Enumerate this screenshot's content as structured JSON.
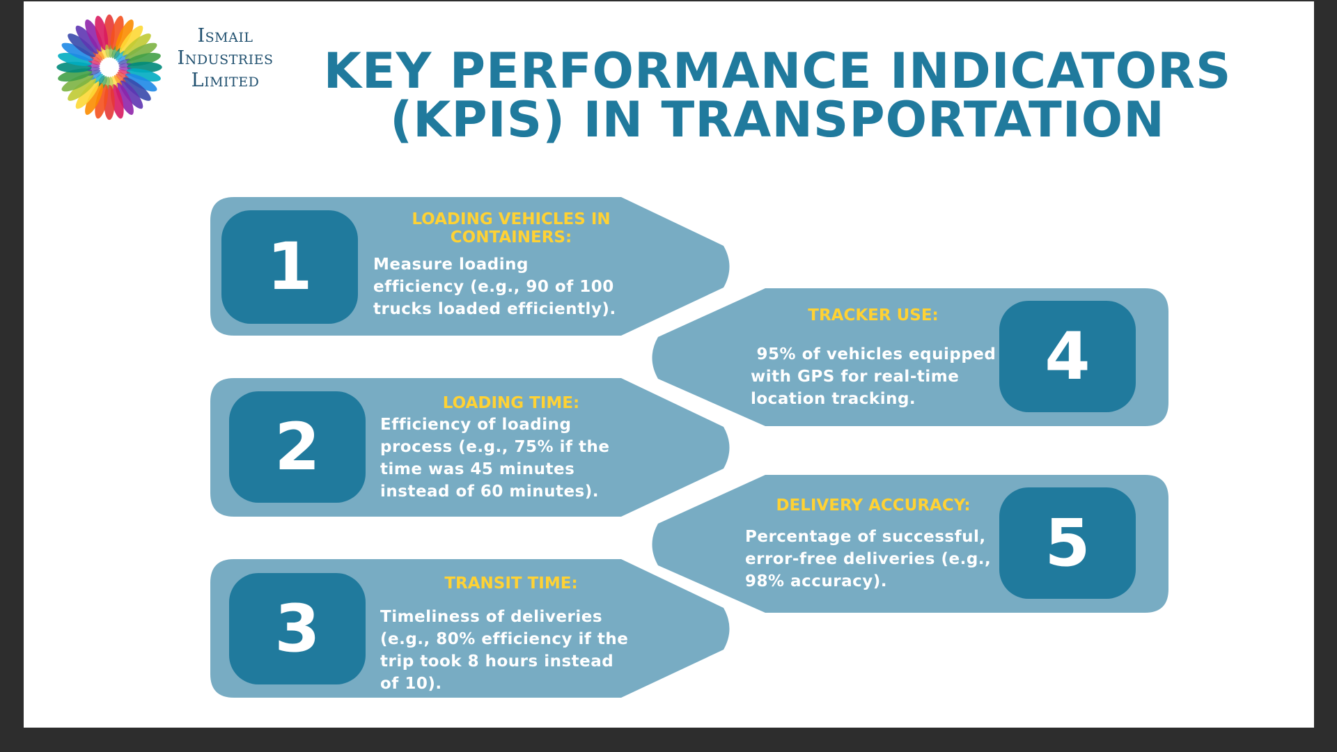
{
  "logo": {
    "icon": "sunburst-flower-logo",
    "lines": [
      "Ismail",
      "Industries",
      "Limited"
    ]
  },
  "title": {
    "line1": "KEY PERFORMANCE INDICATORS",
    "line2": "(KPIS) IN TRANSPORTATION"
  },
  "colors": {
    "card": "#78acc3",
    "badge": "#207a9d",
    "heading": "#ffd234",
    "title": "#207a9d"
  },
  "kpis": [
    {
      "number": "1",
      "heading_lines": [
        "LOADING VEHICLES IN",
        "CONTAINERS:"
      ],
      "body_lines": [
        "Measure loading",
        "efficiency (e.g., 90 of 100",
        "trucks loaded efficiently)."
      ]
    },
    {
      "number": "2",
      "heading_lines": [
        "LOADING TIME:"
      ],
      "body_lines": [
        "Efficiency of loading",
        "process (e.g., 75% if the",
        "time was 45 minutes",
        "instead of 60 minutes)."
      ]
    },
    {
      "number": "3",
      "heading_lines": [
        "TRANSIT TIME:"
      ],
      "body_lines": [
        "Timeliness of deliveries",
        "(e.g., 80% efficiency if the",
        "trip took 8 hours instead",
        "of 10)."
      ]
    },
    {
      "number": "4",
      "heading_lines": [
        "TRACKER USE:"
      ],
      "body_lines": [
        " 95% of vehicles equipped",
        "with GPS for real-time",
        "location tracking."
      ]
    },
    {
      "number": "5",
      "heading_lines": [
        "DELIVERY ACCURACY:"
      ],
      "body_lines": [
        "Percentage of successful,",
        "error-free deliveries (e.g.,",
        "98% accuracy)."
      ]
    }
  ]
}
